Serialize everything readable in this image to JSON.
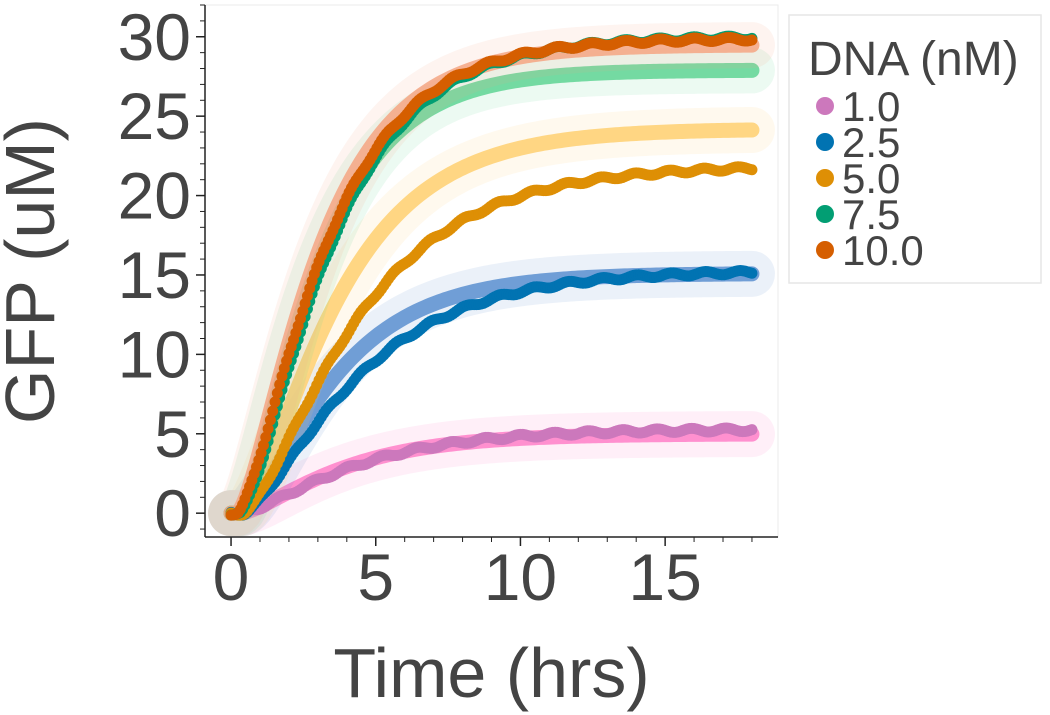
{
  "chart_data": {
    "type": "scatter",
    "xlabel": "Time (hrs)",
    "ylabel": "GFP (uM)",
    "xlim": [
      -0.9,
      18.9
    ],
    "ylim": [
      -1.5,
      32
    ],
    "x_ticks": [
      0,
      5,
      10,
      15
    ],
    "y_ticks": [
      0,
      5,
      10,
      15,
      20,
      25,
      30
    ],
    "x_minor_step": 1,
    "y_minor_step": 1,
    "grid": false,
    "legend": {
      "title": "DNA (nM)",
      "placement": "outside-right-top"
    },
    "x_range": [
      0,
      18
    ],
    "series": [
      {
        "name": "1.0",
        "color": "#cc78bc",
        "band_color": "#ff7fc8",
        "plateau": 5.3,
        "band_plateau": 5.0,
        "rate": 0.3,
        "band_rate": 0.34,
        "lag": 0.3
      },
      {
        "name": "2.5",
        "color": "#0173b2",
        "band_color": "#5b8fd0",
        "plateau": 15.3,
        "band_plateau": 15.1,
        "rate": 0.3,
        "band_rate": 0.38,
        "lag": 0.4
      },
      {
        "name": "5.0",
        "color": "#de8f05",
        "band_color": "#ffd070",
        "plateau": 21.9,
        "band_plateau": 24.2,
        "rate": 0.3,
        "band_rate": 0.36,
        "lag": 0.4
      },
      {
        "name": "7.5",
        "color": "#029e73",
        "band_color": "#5fd394",
        "plateau": 30.0,
        "band_plateau": 27.9,
        "rate": 0.38,
        "band_rate": 0.44,
        "lag": 0.3
      },
      {
        "name": "10.0",
        "color": "#d55e00",
        "band_color": "#f4a582",
        "plateau": 29.9,
        "band_plateau": 29.5,
        "rate": 0.39,
        "band_rate": 0.42,
        "lag": 0.2
      }
    ]
  }
}
